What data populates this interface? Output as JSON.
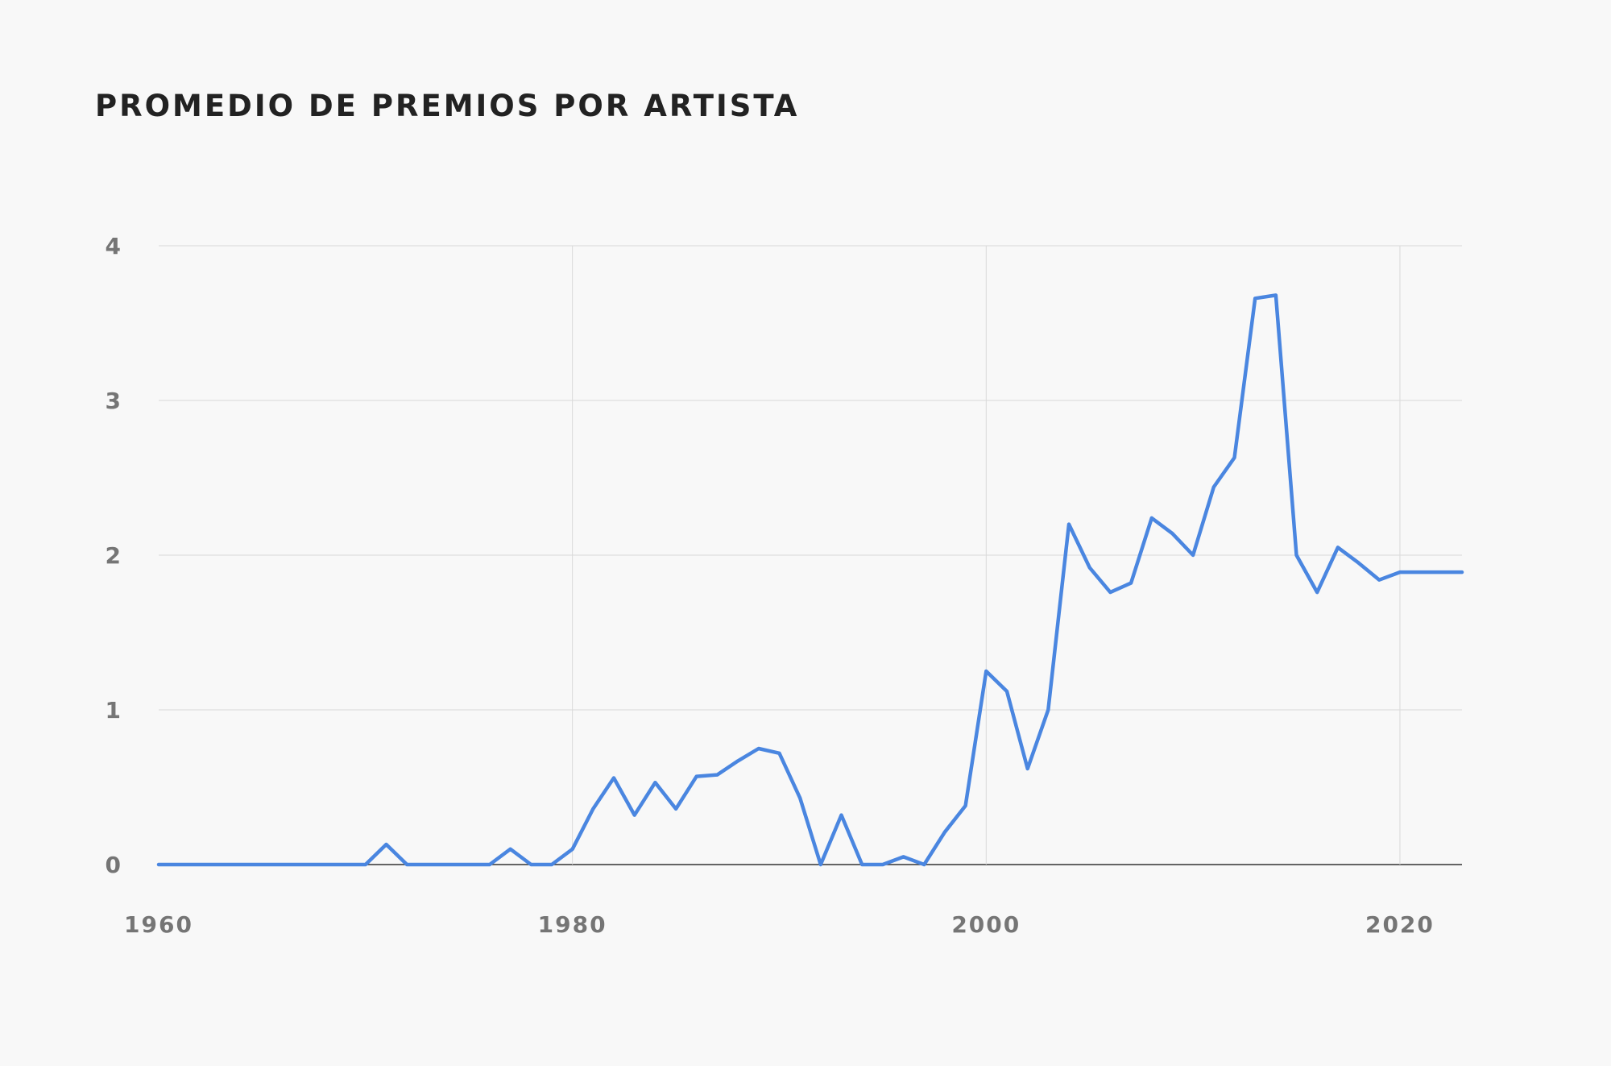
{
  "chart_data": {
    "type": "line",
    "title": "PROMEDIO DE PREMIOS POR ARTISTA",
    "xlabel": "",
    "ylabel": "",
    "xlim": [
      1960,
      2023
    ],
    "ylim": [
      0,
      4
    ],
    "x_ticks": [
      1960,
      1980,
      2000,
      2020
    ],
    "y_ticks": [
      0,
      1,
      2,
      3,
      4
    ],
    "grid": true,
    "legend": "none",
    "line_color": "#4a86e0",
    "grid_color": "#d9d9d9",
    "baseline_color": "#333333",
    "x": [
      1960,
      1961,
      1962,
      1963,
      1964,
      1965,
      1966,
      1967,
      1968,
      1969,
      1970,
      1971,
      1972,
      1973,
      1974,
      1975,
      1976,
      1977,
      1978,
      1979,
      1980,
      1981,
      1982,
      1983,
      1984,
      1985,
      1986,
      1987,
      1988,
      1989,
      1990,
      1991,
      1992,
      1993,
      1994,
      1995,
      1996,
      1997,
      1998,
      1999,
      2000,
      2001,
      2002,
      2003,
      2004,
      2005,
      2006,
      2007,
      2008,
      2009,
      2010,
      2011,
      2012,
      2013,
      2014,
      2015,
      2016,
      2017,
      2018,
      2019,
      2020,
      2021,
      2022,
      2023
    ],
    "series": [
      {
        "values": [
          0,
          0,
          0,
          0,
          0,
          0,
          0,
          0,
          0,
          0,
          0,
          0.13,
          0,
          0,
          0,
          0,
          0,
          0.1,
          0,
          0,
          0.1,
          0.36,
          0.56,
          0.32,
          0.53,
          0.36,
          0.57,
          0.58,
          0.67,
          0.75,
          0.72,
          0.43,
          0,
          0.32,
          0,
          0,
          0.05,
          0,
          0.21,
          0.38,
          1.25,
          1.12,
          0.62,
          1.0,
          2.2,
          1.92,
          1.76,
          1.82,
          2.24,
          2.14,
          2.0,
          2.44,
          2.63,
          3.66,
          3.68,
          2.0,
          1.76,
          2.05,
          1.95,
          1.84,
          1.89,
          1.89,
          1.89,
          1.89
        ]
      }
    ]
  }
}
